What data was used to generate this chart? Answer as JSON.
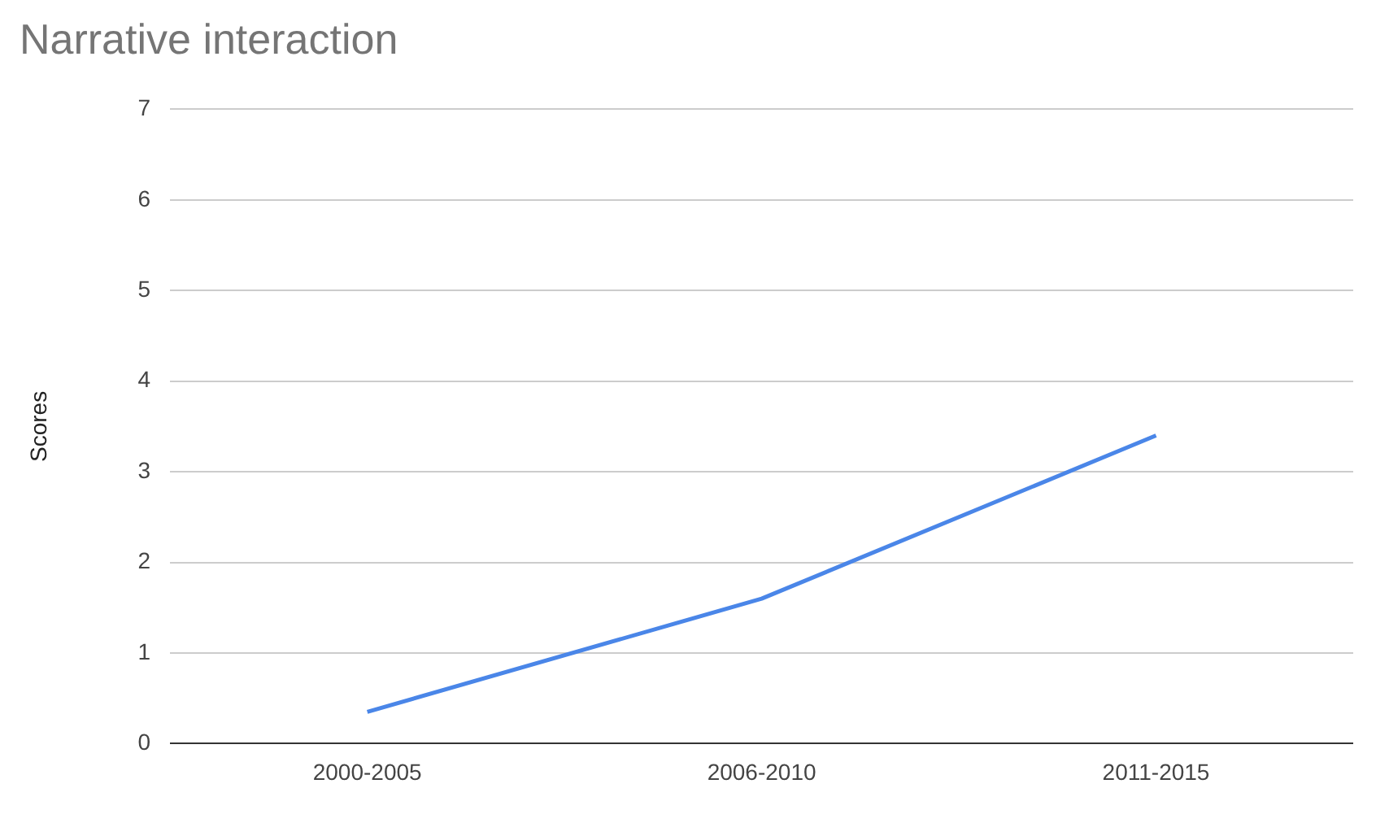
{
  "chart_data": {
    "type": "line",
    "title": "Narrative interaction",
    "ylabel": "Scores",
    "categories": [
      "2000-2005",
      "2006-2010",
      "2011-2015"
    ],
    "series": [
      {
        "color": "#4a86e8",
        "values": [
          0.35,
          1.6,
          3.4
        ]
      }
    ],
    "ylim": [
      0,
      7
    ],
    "yticks": [
      0,
      1,
      2,
      3,
      4,
      5,
      6,
      7
    ],
    "grid": "y",
    "legend": false,
    "marker": "none",
    "line_style": "solid"
  }
}
